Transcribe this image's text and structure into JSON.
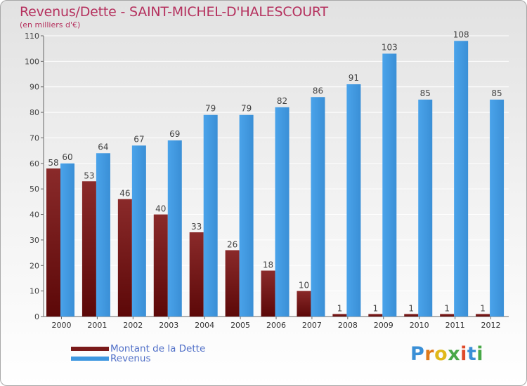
{
  "header": {
    "title": "Revenus/Dette - SAINT-MICHEL-D'HALESCOURT",
    "subtitle": "(en milliers d'€)"
  },
  "colors": {
    "debt": "#7a1a1a",
    "revenue": "#3e97e0",
    "title": "#b5315e",
    "legend_text": "#5170c8"
  },
  "logo": {
    "text": "Proxiti",
    "icon": "proxiti-logo"
  },
  "chart_data": {
    "type": "bar",
    "title": "Revenus/Dette - SAINT-MICHEL-D'HALESCOURT",
    "subtitle": "(en milliers d'€)",
    "categories": [
      "2000",
      "2001",
      "2002",
      "2003",
      "2004",
      "2005",
      "2006",
      "2007",
      "2008",
      "2009",
      "2010",
      "2011",
      "2012"
    ],
    "series": [
      {
        "name": "Montant de la Dette",
        "values": [
          58,
          53,
          46,
          40,
          33,
          26,
          18,
          10,
          1,
          1,
          1,
          1,
          1
        ]
      },
      {
        "name": "Revenus",
        "values": [
          60,
          64,
          67,
          69,
          79,
          79,
          82,
          86,
          91,
          103,
          85,
          108,
          85
        ]
      }
    ],
    "ylim": [
      0,
      110
    ],
    "yticks": [
      0,
      10,
      20,
      30,
      40,
      50,
      60,
      70,
      80,
      90,
      100,
      110
    ],
    "grid": true,
    "legend": "bottom-left"
  }
}
